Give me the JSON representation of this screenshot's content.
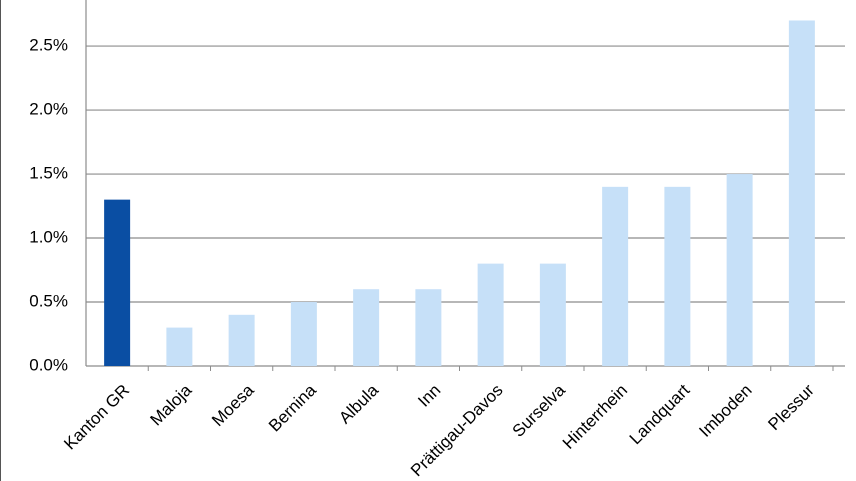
{
  "chart_data": {
    "type": "bar",
    "categories": [
      "Kanton GR",
      "Maloja",
      "Moesa",
      "Bernina",
      "Albula",
      "Inn",
      "Prättigau-Davos",
      "Surselva",
      "Hinterrhein",
      "Landquart",
      "Imboden",
      "Plessur"
    ],
    "values": [
      1.3,
      0.3,
      0.4,
      0.5,
      0.6,
      0.6,
      0.8,
      0.8,
      1.4,
      1.4,
      1.5,
      2.7
    ],
    "colors": [
      "#0a4ea3",
      "#c6e0f8",
      "#c6e0f8",
      "#c6e0f8",
      "#c6e0f8",
      "#c6e0f8",
      "#c6e0f8",
      "#c6e0f8",
      "#c6e0f8",
      "#c6e0f8",
      "#c6e0f8",
      "#c6e0f8"
    ],
    "ylim": [
      0,
      2.86
    ],
    "yticks": [
      {
        "value": 0,
        "label": "0.0%"
      },
      {
        "value": 0.5,
        "label": "0.5%"
      },
      {
        "value": 1,
        "label": "1.0%"
      },
      {
        "value": 1.5,
        "label": "1.5%"
      },
      {
        "value": 2,
        "label": "2.0%"
      },
      {
        "value": 2.5,
        "label": "2.5%"
      }
    ],
    "grid": true
  }
}
